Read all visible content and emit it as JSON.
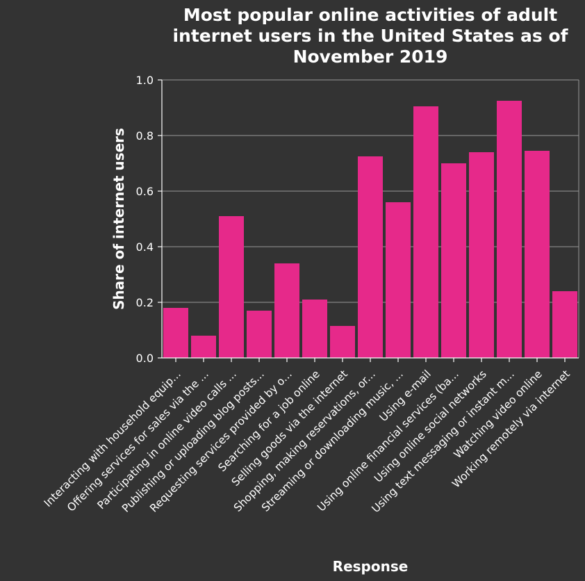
{
  "chart_data": {
    "type": "bar",
    "title_lines": [
      "Most popular online activities of adult",
      "internet users in the United States as of",
      "November 2019"
    ],
    "xlabel": "Response",
    "ylabel": "Share of internet users",
    "ylim": [
      0,
      1.0
    ],
    "yticks": [
      "0.0",
      "0.2",
      "0.4",
      "0.6",
      "0.8",
      "1.0"
    ],
    "grid": true,
    "bar_color": "#e6298a",
    "categories": [
      "Interacting with household equip...",
      "Offering services for sales via the ...",
      "Participating in online video calls ...",
      "Publishing or uploading blog posts...",
      "Requesting services provided by o...",
      "Searching for a job online",
      "Selling goods via the internet",
      "Shopping, making reservations, or...",
      "Streaming or downloading music, ...",
      "Using e-mail",
      "Using online financial services (ba...",
      "Using online social networks",
      "Using text messaging or instant m...",
      "Watching video online",
      "Working remotely via internet"
    ],
    "values": [
      0.18,
      0.08,
      0.51,
      0.17,
      0.34,
      0.21,
      0.115,
      0.725,
      0.56,
      0.905,
      0.7,
      0.74,
      0.925,
      0.745,
      0.24
    ]
  }
}
